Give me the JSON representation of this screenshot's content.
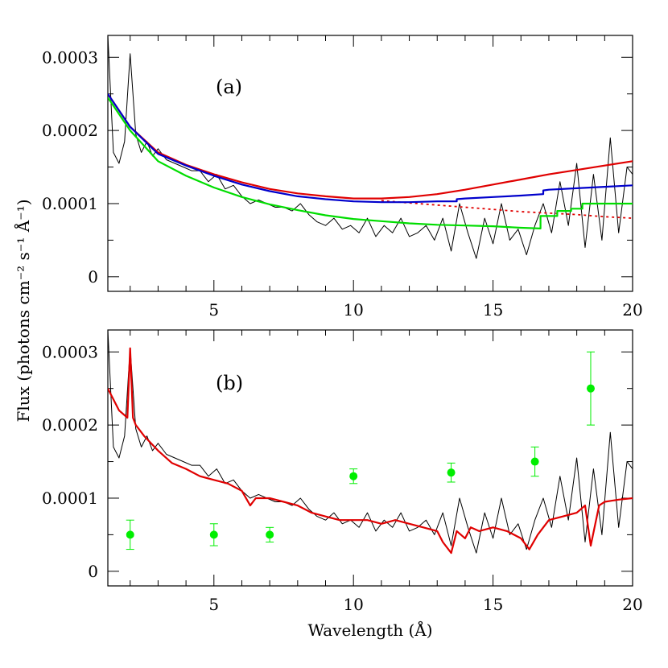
{
  "chart_data": {
    "type": "line",
    "ylabel": "Flux (photons cm⁻² s⁻¹ Å⁻¹)",
    "xlabel": "Wavelength (Å)",
    "colors": {
      "data": "#000000",
      "red": "#e00000",
      "blue": "#0000cc",
      "green": "#00dd00"
    },
    "panels": [
      {
        "label": "(a)",
        "xlim": [
          1.2,
          20
        ],
        "ylim": [
          -2e-05,
          0.00033
        ],
        "xticks": [
          5,
          10,
          15,
          20
        ],
        "yticks": [
          0,
          0.0001,
          0.0002,
          0.0003
        ],
        "ytick_labels": [
          "0",
          "0.0001",
          "0.0002",
          "0.0003"
        ],
        "grid": false,
        "series": [
          {
            "color": "#000000",
            "style": "thin",
            "x": [
              1.2,
              1.4,
              1.6,
              1.8,
              2.0,
              2.2,
              2.4,
              2.6,
              2.8,
              3.0,
              3.3,
              3.6,
              3.9,
              4.2,
              4.5,
              4.8,
              5.1,
              5.4,
              5.7,
              6.0,
              6.3,
              6.6,
              6.9,
              7.2,
              7.5,
              7.8,
              8.1,
              8.4,
              8.7,
              9.0,
              9.3,
              9.6,
              9.9,
              10.2,
              10.5,
              10.8,
              11.1,
              11.4,
              11.7,
              12.0,
              12.3,
              12.6,
              12.9,
              13.2,
              13.5,
              13.8,
              14.1,
              14.4,
              14.7,
              15.0,
              15.3,
              15.6,
              15.9,
              16.2,
              16.5,
              16.8,
              17.1,
              17.4,
              17.7,
              18.0,
              18.3,
              18.6,
              18.9,
              19.2,
              19.5,
              19.8,
              20.0
            ],
            "y": [
              0.00033,
              0.00017,
              0.000155,
              0.000185,
              0.000305,
              0.000195,
              0.00017,
              0.000185,
              0.000165,
              0.000175,
              0.00016,
              0.000155,
              0.00015,
              0.000145,
              0.000145,
              0.00013,
              0.00014,
              0.00012,
              0.000125,
              0.00011,
              0.0001,
              0.000105,
              0.0001,
              9.5e-05,
              9.5e-05,
              9e-05,
              0.0001,
              8.5e-05,
              7.5e-05,
              7e-05,
              8e-05,
              6.5e-05,
              7e-05,
              6e-05,
              8e-05,
              5.5e-05,
              7e-05,
              6e-05,
              8e-05,
              5.5e-05,
              6e-05,
              7e-05,
              5e-05,
              8e-05,
              3.5e-05,
              0.0001,
              6e-05,
              2.5e-05,
              8e-05,
              4.5e-05,
              0.0001,
              5e-05,
              6.5e-05,
              3e-05,
              7e-05,
              0.0001,
              6e-05,
              0.00013,
              7e-05,
              0.000155,
              4e-05,
              0.00014,
              5e-05,
              0.00019,
              6e-05,
              0.00015,
              0.00014
            ]
          },
          {
            "color": "#e00000",
            "style": "thick",
            "x": [
              1.2,
              2,
              3,
              4,
              5,
              6,
              7,
              8,
              9,
              10,
              11,
              12,
              13,
              14,
              15,
              16,
              17,
              18,
              19,
              20
            ],
            "y": [
              0.00025,
              0.000205,
              0.00017,
              0.000153,
              0.00014,
              0.000129,
              0.00012,
              0.000114,
              0.00011,
              0.000107,
              0.000107,
              0.000109,
              0.000113,
              0.000119,
              0.000126,
              0.000133,
              0.00014,
              0.000146,
              0.000152,
              0.000158
            ]
          },
          {
            "color": "#e00000",
            "style": "dotted",
            "x": [
              11,
              12,
              13,
              14,
              15,
              16,
              17,
              18,
              19,
              20
            ],
            "y": [
              0.000104,
              0.000101,
              9.8e-05,
              9.5e-05,
              9.2e-05,
              8.9e-05,
              8.7e-05,
              8.5e-05,
              8.2e-05,
              8e-05
            ]
          },
          {
            "color": "#0000cc",
            "style": "thick",
            "x": [
              1.2,
              2,
              3,
              4,
              5,
              6,
              7,
              8,
              9,
              10,
              11,
              12,
              13,
              13.7,
              13.7,
              14,
              15,
              16,
              16.8,
              16.8,
              17,
              18,
              19,
              20
            ],
            "y": [
              0.00025,
              0.000205,
              0.000168,
              0.000152,
              0.000138,
              0.000126,
              0.000117,
              0.00011,
              0.000106,
              0.000103,
              0.000102,
              0.000102,
              0.000103,
              0.000103,
              0.000106,
              0.000107,
              0.000109,
              0.000111,
              0.000113,
              0.000118,
              0.000119,
              0.000121,
              0.000123,
              0.000125
            ]
          },
          {
            "color": "#00dd00",
            "style": "thick",
            "x": [
              1.2,
              2,
              3,
              4,
              5,
              6,
              7,
              8,
              9,
              10,
              11,
              12,
              13,
              14,
              15,
              16,
              16.7,
              16.7,
              17.3,
              17.3,
              17.8,
              17.8,
              18.2,
              18.2,
              20
            ],
            "y": [
              0.000245,
              0.0002,
              0.000158,
              0.000138,
              0.000122,
              0.000109,
              9.9e-05,
              9.1e-05,
              8.4e-05,
              7.9e-05,
              7.6e-05,
              7.3e-05,
              7.1e-05,
              7e-05,
              6.9e-05,
              6.7e-05,
              6.6e-05,
              8.3e-05,
              8.3e-05,
              9e-05,
              9e-05,
              9.3e-05,
              9.3e-05,
              0.0001,
              0.0001
            ]
          }
        ]
      },
      {
        "label": "(b)",
        "xlim": [
          1.2,
          20
        ],
        "ylim": [
          -2e-05,
          0.00033
        ],
        "xticks": [
          5,
          10,
          15,
          20
        ],
        "yticks": [
          0,
          0.0001,
          0.0002,
          0.0003
        ],
        "ytick_labels": [
          "0",
          "0.0001",
          "0.0002",
          "0.0003"
        ],
        "grid": false,
        "series": [
          {
            "color": "#000000",
            "style": "thin",
            "x": [
              1.2,
              1.4,
              1.6,
              1.8,
              2.0,
              2.2,
              2.4,
              2.6,
              2.8,
              3.0,
              3.3,
              3.6,
              3.9,
              4.2,
              4.5,
              4.8,
              5.1,
              5.4,
              5.7,
              6.0,
              6.3,
              6.6,
              6.9,
              7.2,
              7.5,
              7.8,
              8.1,
              8.4,
              8.7,
              9.0,
              9.3,
              9.6,
              9.9,
              10.2,
              10.5,
              10.8,
              11.1,
              11.4,
              11.7,
              12.0,
              12.3,
              12.6,
              12.9,
              13.2,
              13.5,
              13.8,
              14.1,
              14.4,
              14.7,
              15.0,
              15.3,
              15.6,
              15.9,
              16.2,
              16.5,
              16.8,
              17.1,
              17.4,
              17.7,
              18.0,
              18.3,
              18.6,
              18.9,
              19.2,
              19.5,
              19.8,
              20.0
            ],
            "y": [
              0.00033,
              0.00017,
              0.000155,
              0.000185,
              0.000305,
              0.000195,
              0.00017,
              0.000185,
              0.000165,
              0.000175,
              0.00016,
              0.000155,
              0.00015,
              0.000145,
              0.000145,
              0.00013,
              0.00014,
              0.00012,
              0.000125,
              0.00011,
              0.0001,
              0.000105,
              0.0001,
              9.5e-05,
              9.5e-05,
              9e-05,
              0.0001,
              8.5e-05,
              7.5e-05,
              7e-05,
              8e-05,
              6.5e-05,
              7e-05,
              6e-05,
              8e-05,
              5.5e-05,
              7e-05,
              6e-05,
              8e-05,
              5.5e-05,
              6e-05,
              7e-05,
              5e-05,
              8e-05,
              3.5e-05,
              0.0001,
              6e-05,
              2.5e-05,
              8e-05,
              4.5e-05,
              0.0001,
              5e-05,
              6.5e-05,
              3e-05,
              7e-05,
              0.0001,
              6e-05,
              0.00013,
              7e-05,
              0.000155,
              4e-05,
              0.00014,
              5e-05,
              0.00019,
              6e-05,
              0.00015,
              0.00014
            ]
          },
          {
            "color": "#e00000",
            "style": "thick",
            "x": [
              1.2,
              1.6,
              1.9,
              2.0,
              2.1,
              2.2,
              2.5,
              3,
              3.5,
              4,
              4.5,
              5,
              5.5,
              6,
              6.3,
              6.5,
              7,
              7.5,
              8,
              8.5,
              9,
              9.5,
              10,
              10.5,
              11,
              11.5,
              12,
              12.5,
              13,
              13.2,
              13.5,
              13.7,
              14,
              14.2,
              14.5,
              15,
              15.5,
              16,
              16.3,
              16.6,
              17,
              17.5,
              18,
              18.3,
              18.5,
              18.8,
              19,
              19.5,
              20
            ],
            "y": [
              0.00025,
              0.00022,
              0.00021,
              0.000305,
              0.00021,
              0.0002,
              0.000185,
              0.000165,
              0.000148,
              0.00014,
              0.00013,
              0.000125,
              0.00012,
              0.00011,
              9e-05,
              0.0001,
              0.0001,
              9.5e-05,
              9e-05,
              8e-05,
              7.5e-05,
              7e-05,
              7e-05,
              7e-05,
              6.5e-05,
              7e-05,
              6.5e-05,
              6e-05,
              5.5e-05,
              4e-05,
              2.5e-05,
              5.5e-05,
              4.5e-05,
              6e-05,
              5.5e-05,
              6e-05,
              5.5e-05,
              4.5e-05,
              3e-05,
              5e-05,
              7e-05,
              7.5e-05,
              8e-05,
              9e-05,
              3.5e-05,
              9e-05,
              9.5e-05,
              9.8e-05,
              0.0001
            ]
          }
        ],
        "points": {
          "color": "#00ee00",
          "x": [
            2,
            5,
            7,
            10,
            13.5,
            16.5,
            18.5
          ],
          "y": [
            5e-05,
            5e-05,
            5e-05,
            0.00013,
            0.000135,
            0.00015,
            0.00025
          ],
          "err": [
            2e-05,
            1.5e-05,
            1e-05,
            1e-05,
            1.3e-05,
            2e-05,
            5e-05
          ]
        }
      }
    ]
  }
}
